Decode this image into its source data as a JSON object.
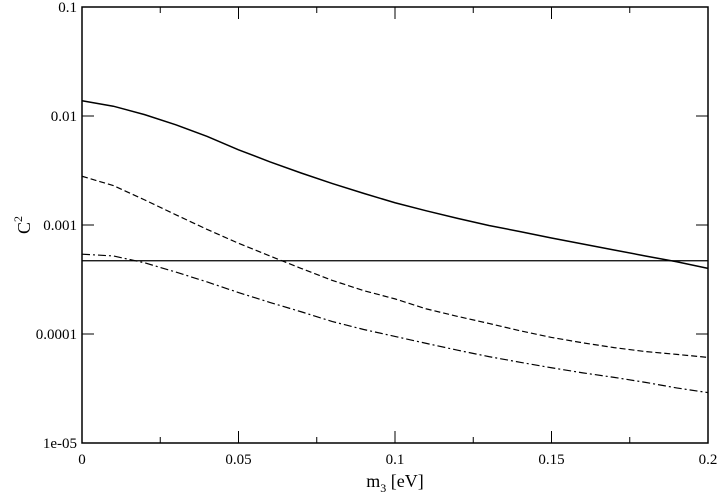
{
  "chart_data": {
    "type": "line",
    "xlabel": "m",
    "xlabel_sub": "3",
    "xlabel_unit": " [eV]",
    "ylabel": "C",
    "ylabel_sup": "2",
    "xlim": [
      0,
      0.2
    ],
    "ylim": [
      1e-05,
      0.1
    ],
    "yscale": "log",
    "grid": false,
    "x_ticks": [
      0,
      0.05,
      0.1,
      0.15,
      0.2
    ],
    "x_tick_labels": [
      "0",
      "0.05",
      "0.1",
      "0.15",
      "0.2"
    ],
    "y_ticks": [
      1e-05,
      0.0001,
      0.001,
      0.01,
      0.1
    ],
    "y_tick_labels": [
      "1e-05",
      "0.0001",
      "0.001",
      "0.01",
      "0.1"
    ],
    "series": [
      {
        "style": "solid",
        "x": [
          0,
          0.01,
          0.02,
          0.03,
          0.04,
          0.05,
          0.06,
          0.07,
          0.08,
          0.09,
          0.1,
          0.11,
          0.12,
          0.13,
          0.14,
          0.15,
          0.16,
          0.17,
          0.18,
          0.19,
          0.2
        ],
        "y": [
          0.0138,
          0.0123,
          0.0103,
          0.0083,
          0.0065,
          0.0049,
          0.0038,
          0.003,
          0.0024,
          0.00195,
          0.0016,
          0.00135,
          0.00115,
          0.00099,
          0.00087,
          0.00076,
          0.00067,
          0.00059,
          0.00052,
          0.00046,
          0.0004
        ]
      },
      {
        "style": "dashed",
        "x": [
          0,
          0.01,
          0.02,
          0.03,
          0.04,
          0.05,
          0.06,
          0.07,
          0.08,
          0.09,
          0.1,
          0.11,
          0.12,
          0.13,
          0.14,
          0.15,
          0.16,
          0.17,
          0.18,
          0.19,
          0.2
        ],
        "y": [
          0.0028,
          0.0023,
          0.0017,
          0.00124,
          0.00091,
          0.00068,
          0.00052,
          0.0004,
          0.00031,
          0.00025,
          0.00021,
          0.00017,
          0.000145,
          0.000125,
          0.000107,
          9.3e-05,
          8.3e-05,
          7.5e-05,
          6.9e-05,
          6.5e-05,
          6.1e-05
        ]
      },
      {
        "style": "dashdot",
        "x": [
          0,
          0.01,
          0.02,
          0.03,
          0.04,
          0.05,
          0.06,
          0.07,
          0.08,
          0.09,
          0.1,
          0.11,
          0.12,
          0.13,
          0.14,
          0.15,
          0.16,
          0.17,
          0.18,
          0.19,
          0.2
        ],
        "y": [
          0.00054,
          0.00052,
          0.00045,
          0.00037,
          0.0003,
          0.00024,
          0.000195,
          0.00016,
          0.00013,
          0.00011,
          9.5e-05,
          8.2e-05,
          7.1e-05,
          6.2e-05,
          5.5e-05,
          4.9e-05,
          4.4e-05,
          4e-05,
          3.6e-05,
          3.2e-05,
          2.9e-05
        ]
      },
      {
        "style": "solid-thin",
        "x": [
          0,
          0.2
        ],
        "y": [
          0.00047,
          0.00047
        ]
      }
    ]
  }
}
